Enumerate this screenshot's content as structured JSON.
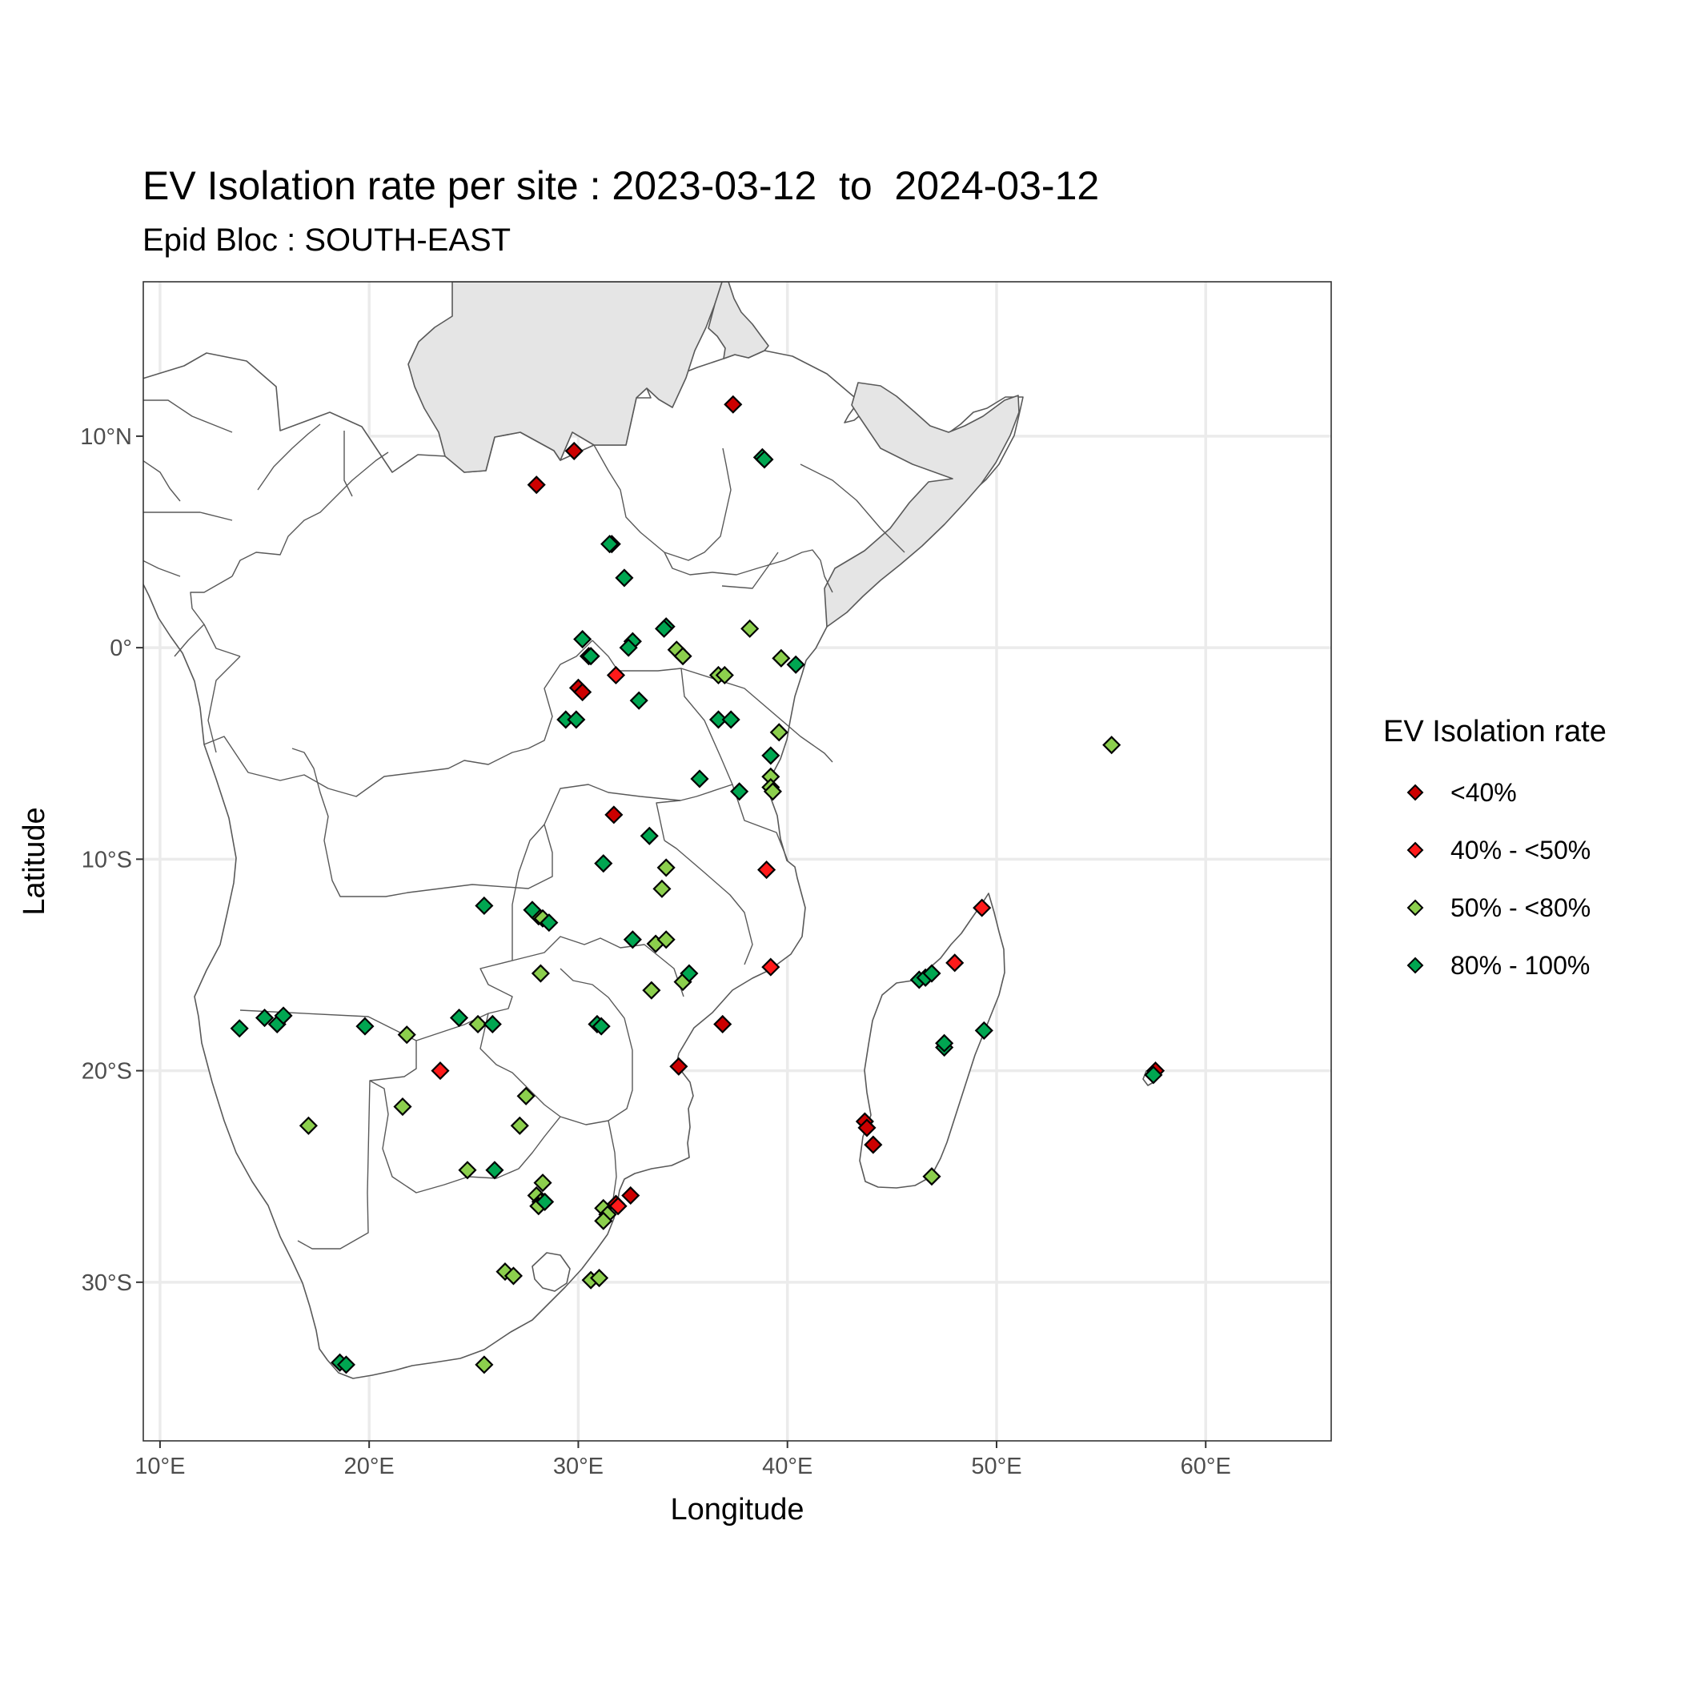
{
  "chart_data": {
    "type": "scatter",
    "title": "EV Isolation rate per site : 2023-03-12  to  2024-03-12",
    "subtitle": "Epid Bloc : SOUTH-EAST",
    "xlabel": "Longitude",
    "ylabel": "Latitude",
    "xlim": [
      9.2,
      66.0
    ],
    "ylim": [
      -37.5,
      17.3
    ],
    "x_ticks": [
      {
        "value": 10,
        "label": "10°E"
      },
      {
        "value": 20,
        "label": "20°E"
      },
      {
        "value": 30,
        "label": "30°E"
      },
      {
        "value": 40,
        "label": "40°E"
      },
      {
        "value": 50,
        "label": "50°E"
      },
      {
        "value": 60,
        "label": "60°E"
      }
    ],
    "y_ticks": [
      {
        "value": 10,
        "label": "10°N"
      },
      {
        "value": 0,
        "label": "0°"
      },
      {
        "value": -10,
        "label": "10°S"
      },
      {
        "value": -20,
        "label": "20°S"
      },
      {
        "value": -30,
        "label": "30°S"
      }
    ],
    "grid": true,
    "legend_position": "right",
    "legend_title": "EV Isolation rate",
    "legend": [
      {
        "label": "<40%",
        "color": "#cc0000"
      },
      {
        "label": "40% - <50%",
        "color": "#ff1a1a"
      },
      {
        "label": "50% - <80%",
        "color": "#8ccf4d"
      },
      {
        "label": "80% - 100%",
        "color": "#00a651"
      }
    ],
    "colors": {
      "land": "#ffffff",
      "not_in_bloc": "#e5e5e5",
      "border": "#595959",
      "grid": "#ebebeb",
      "panel_border": "#333333"
    },
    "series": [
      {
        "name": "<40%",
        "points": [
          {
            "lon": 37.4,
            "lat": 11.5
          },
          {
            "lon": 29.8,
            "lat": 9.3
          },
          {
            "lon": 28.0,
            "lat": 7.7
          },
          {
            "lon": 30.0,
            "lat": -1.9
          },
          {
            "lon": 30.2,
            "lat": -2.1
          },
          {
            "lon": 31.7,
            "lat": -7.9
          },
          {
            "lon": 36.9,
            "lat": -17.8
          },
          {
            "lon": 34.8,
            "lat": -19.8
          },
          {
            "lon": 32.5,
            "lat": -25.9
          },
          {
            "lon": 31.8,
            "lat": -26.3
          },
          {
            "lon": 43.7,
            "lat": -22.4
          },
          {
            "lon": 43.8,
            "lat": -22.7
          },
          {
            "lon": 44.1,
            "lat": -23.5
          },
          {
            "lon": 57.6,
            "lat": -20.0
          }
        ]
      },
      {
        "name": "40% - <50%",
        "points": [
          {
            "lon": 31.8,
            "lat": -1.3
          },
          {
            "lon": 39.0,
            "lat": -10.5
          },
          {
            "lon": 39.2,
            "lat": -15.1
          },
          {
            "lon": 49.3,
            "lat": -12.3
          },
          {
            "lon": 48.0,
            "lat": -14.9
          },
          {
            "lon": 23.4,
            "lat": -20.0
          },
          {
            "lon": 31.9,
            "lat": -26.4
          }
        ]
      },
      {
        "name": "50% - <80%",
        "points": [
          {
            "lon": 31.6,
            "lat": 4.9
          },
          {
            "lon": 38.2,
            "lat": 0.9
          },
          {
            "lon": 34.7,
            "lat": -0.1
          },
          {
            "lon": 35.0,
            "lat": -0.4
          },
          {
            "lon": 36.7,
            "lat": -1.3
          },
          {
            "lon": 37.0,
            "lat": -1.3
          },
          {
            "lon": 39.7,
            "lat": -0.5
          },
          {
            "lon": 39.6,
            "lat": -4.0
          },
          {
            "lon": 39.2,
            "lat": -6.1
          },
          {
            "lon": 39.2,
            "lat": -6.6
          },
          {
            "lon": 39.3,
            "lat": -6.8
          },
          {
            "lon": 55.5,
            "lat": -4.6
          },
          {
            "lon": 34.2,
            "lat": -10.4
          },
          {
            "lon": 34.0,
            "lat": -11.4
          },
          {
            "lon": 28.1,
            "lat": -12.7
          },
          {
            "lon": 28.3,
            "lat": -12.8
          },
          {
            "lon": 33.7,
            "lat": -14.0
          },
          {
            "lon": 34.2,
            "lat": -13.8
          },
          {
            "lon": 28.2,
            "lat": -15.4
          },
          {
            "lon": 33.5,
            "lat": -16.2
          },
          {
            "lon": 35.0,
            "lat": -15.8
          },
          {
            "lon": 25.2,
            "lat": -17.8
          },
          {
            "lon": 21.8,
            "lat": -18.3
          },
          {
            "lon": 27.5,
            "lat": -21.2
          },
          {
            "lon": 21.6,
            "lat": -21.7
          },
          {
            "lon": 17.1,
            "lat": -22.6
          },
          {
            "lon": 27.2,
            "lat": -22.6
          },
          {
            "lon": 24.7,
            "lat": -24.7
          },
          {
            "lon": 28.3,
            "lat": -25.3
          },
          {
            "lon": 28.0,
            "lat": -25.9
          },
          {
            "lon": 28.2,
            "lat": -26.2
          },
          {
            "lon": 28.1,
            "lat": -26.4
          },
          {
            "lon": 31.2,
            "lat": -26.5
          },
          {
            "lon": 31.4,
            "lat": -26.8
          },
          {
            "lon": 31.2,
            "lat": -27.1
          },
          {
            "lon": 26.5,
            "lat": -29.5
          },
          {
            "lon": 26.9,
            "lat": -29.7
          },
          {
            "lon": 30.6,
            "lat": -29.9
          },
          {
            "lon": 31.0,
            "lat": -29.8
          },
          {
            "lon": 25.5,
            "lat": -33.9
          },
          {
            "lon": 46.9,
            "lat": -25.0
          }
        ]
      },
      {
        "name": "80% - 100%",
        "points": [
          {
            "lon": 38.8,
            "lat": 9.0
          },
          {
            "lon": 38.9,
            "lat": 8.9
          },
          {
            "lon": 31.5,
            "lat": 4.9
          },
          {
            "lon": 32.2,
            "lat": 3.3
          },
          {
            "lon": 30.2,
            "lat": 0.4
          },
          {
            "lon": 30.5,
            "lat": -0.4
          },
          {
            "lon": 30.6,
            "lat": -0.4
          },
          {
            "lon": 32.6,
            "lat": 0.3
          },
          {
            "lon": 32.4,
            "lat": 0.0
          },
          {
            "lon": 34.2,
            "lat": 1.0
          },
          {
            "lon": 34.1,
            "lat": 0.9
          },
          {
            "lon": 40.4,
            "lat": -0.8
          },
          {
            "lon": 32.9,
            "lat": -2.5
          },
          {
            "lon": 29.4,
            "lat": -3.4
          },
          {
            "lon": 29.9,
            "lat": -3.4
          },
          {
            "lon": 36.7,
            "lat": -3.4
          },
          {
            "lon": 37.3,
            "lat": -3.4
          },
          {
            "lon": 39.2,
            "lat": -5.1
          },
          {
            "lon": 35.8,
            "lat": -6.2
          },
          {
            "lon": 37.7,
            "lat": -6.8
          },
          {
            "lon": 33.4,
            "lat": -8.9
          },
          {
            "lon": 31.2,
            "lat": -10.2
          },
          {
            "lon": 25.5,
            "lat": -12.2
          },
          {
            "lon": 27.8,
            "lat": -12.4
          },
          {
            "lon": 28.6,
            "lat": -13.0
          },
          {
            "lon": 32.6,
            "lat": -13.8
          },
          {
            "lon": 35.3,
            "lat": -15.4
          },
          {
            "lon": 46.3,
            "lat": -15.7
          },
          {
            "lon": 46.6,
            "lat": -15.6
          },
          {
            "lon": 46.9,
            "lat": -15.4
          },
          {
            "lon": 13.8,
            "lat": -18.0
          },
          {
            "lon": 15.0,
            "lat": -17.5
          },
          {
            "lon": 15.6,
            "lat": -17.8
          },
          {
            "lon": 15.9,
            "lat": -17.4
          },
          {
            "lon": 19.8,
            "lat": -17.9
          },
          {
            "lon": 24.3,
            "lat": -17.5
          },
          {
            "lon": 25.9,
            "lat": -17.8
          },
          {
            "lon": 30.9,
            "lat": -17.8
          },
          {
            "lon": 31.1,
            "lat": -17.9
          },
          {
            "lon": 47.5,
            "lat": -18.9
          },
          {
            "lon": 47.5,
            "lat": -18.7
          },
          {
            "lon": 49.4,
            "lat": -18.1
          },
          {
            "lon": 57.5,
            "lat": -20.2
          },
          {
            "lon": 26.0,
            "lat": -24.7
          },
          {
            "lon": 28.4,
            "lat": -26.2
          },
          {
            "lon": 18.6,
            "lat": -33.8
          },
          {
            "lon": 18.9,
            "lat": -33.9
          }
        ]
      }
    ]
  }
}
